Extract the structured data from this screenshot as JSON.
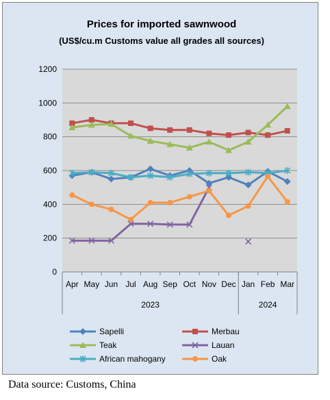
{
  "chart_data": {
    "type": "line",
    "title": "Prices for imported sawnwood",
    "subtitle": "(US$/cu.m Customs value all grades all sources)",
    "categories": [
      "Apr",
      "May",
      "Jun",
      "Jul",
      "Aug",
      "Sep",
      "Oct",
      "Nov",
      "Dec",
      "Jan",
      "Feb",
      "Mar"
    ],
    "year_groups": [
      {
        "label": "2023",
        "from": 0,
        "to": 8
      },
      {
        "label": "2024",
        "from": 9,
        "to": 11
      }
    ],
    "ylim": [
      0,
      1200
    ],
    "yticks": [
      0,
      200,
      400,
      600,
      800,
      1000,
      1200
    ],
    "grid": true,
    "legend_position": "bottom",
    "series": [
      {
        "name": "Sapelli",
        "color": "#4f81bd",
        "marker": "diamond",
        "values": [
          570,
          590,
          550,
          560,
          610,
          570,
          600,
          525,
          560,
          515,
          595,
          535
        ]
      },
      {
        "name": "Merbau",
        "color": "#c0504d",
        "marker": "square",
        "values": [
          880,
          900,
          880,
          880,
          850,
          840,
          840,
          820,
          810,
          825,
          810,
          835
        ]
      },
      {
        "name": "Teak",
        "color": "#9bbb59",
        "marker": "triangle",
        "values": [
          855,
          870,
          875,
          805,
          775,
          755,
          735,
          770,
          720,
          770,
          870,
          980
        ]
      },
      {
        "name": "Lauan",
        "color": "#8064a2",
        "marker": "x",
        "values": [
          185,
          185,
          185,
          285,
          285,
          280,
          280,
          500,
          null,
          180,
          null,
          null
        ]
      },
      {
        "name": "African mahogany",
        "color": "#4bacc6",
        "marker": "star",
        "values": [
          585,
          590,
          585,
          560,
          570,
          560,
          580,
          585,
          585,
          590,
          585,
          600
        ]
      },
      {
        "name": "Oak",
        "color": "#f79646",
        "marker": "circle",
        "values": [
          455,
          400,
          370,
          310,
          410,
          410,
          445,
          480,
          335,
          390,
          565,
          415
        ]
      }
    ]
  },
  "source": "Data source: Customs, China"
}
